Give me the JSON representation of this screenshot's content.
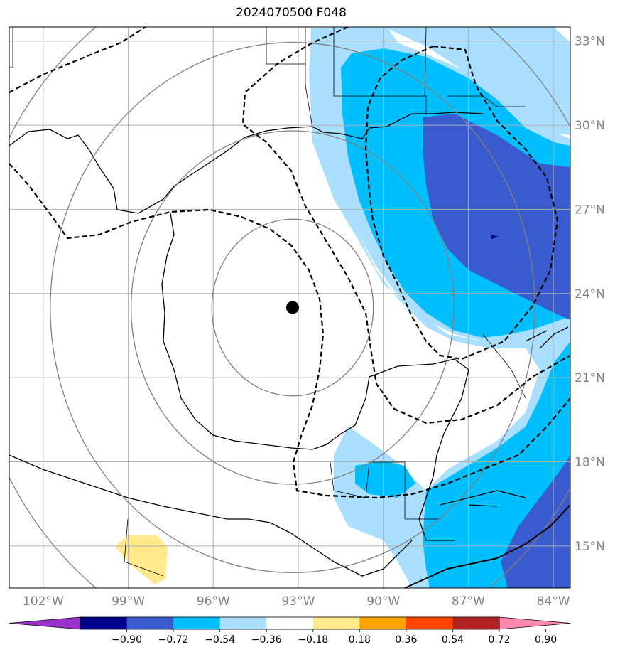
{
  "chart_data": {
    "type": "contour-map",
    "title": "2024070500 F048",
    "projection": "lat-lon",
    "lon_range": [
      -103.2,
      -83.4
    ],
    "lat_range": [
      13.5,
      33.5
    ],
    "lon_ticks": [
      -102,
      -99,
      -96,
      -93,
      -90,
      -87,
      -84
    ],
    "lat_ticks": [
      15,
      18,
      21,
      24,
      27,
      30,
      33
    ],
    "lon_tick_labels": [
      "102°W",
      "99°W",
      "96°W",
      "93°W",
      "90°W",
      "87°W",
      "84°W"
    ],
    "lat_tick_labels": [
      "15°N",
      "18°N",
      "21°N",
      "24°N",
      "27°N",
      "30°N",
      "33°N"
    ],
    "grid": true,
    "center_marker": {
      "lon": -93.2,
      "lat": 23.5
    },
    "range_rings_deg": [
      3,
      6,
      9,
      12
    ],
    "colorbar": {
      "levels": [
        -0.9,
        -0.72,
        -0.54,
        -0.36,
        -0.18,
        0.18,
        0.36,
        0.54,
        0.72,
        0.9
      ],
      "labels": [
        "−0.90",
        "−0.72",
        "−0.54",
        "−0.36",
        "−0.18",
        "0.18",
        "0.36",
        "0.54",
        "0.72",
        "0.90"
      ],
      "colors": [
        "#9932cc",
        "#00008b",
        "#3a5bcd",
        "#00bfff",
        "#aadfff",
        "#ffffff",
        "#ffe98a",
        "#ffa500",
        "#ff4500",
        "#b22222",
        "#ff88b0"
      ],
      "extend": "both"
    },
    "fill_colors": {
      "light_blue": "#aadfff",
      "cyan": "#00bfff",
      "royal_blue": "#3a5bcd",
      "dark_blue": "#00008b",
      "yellow": "#ffe98a"
    }
  }
}
